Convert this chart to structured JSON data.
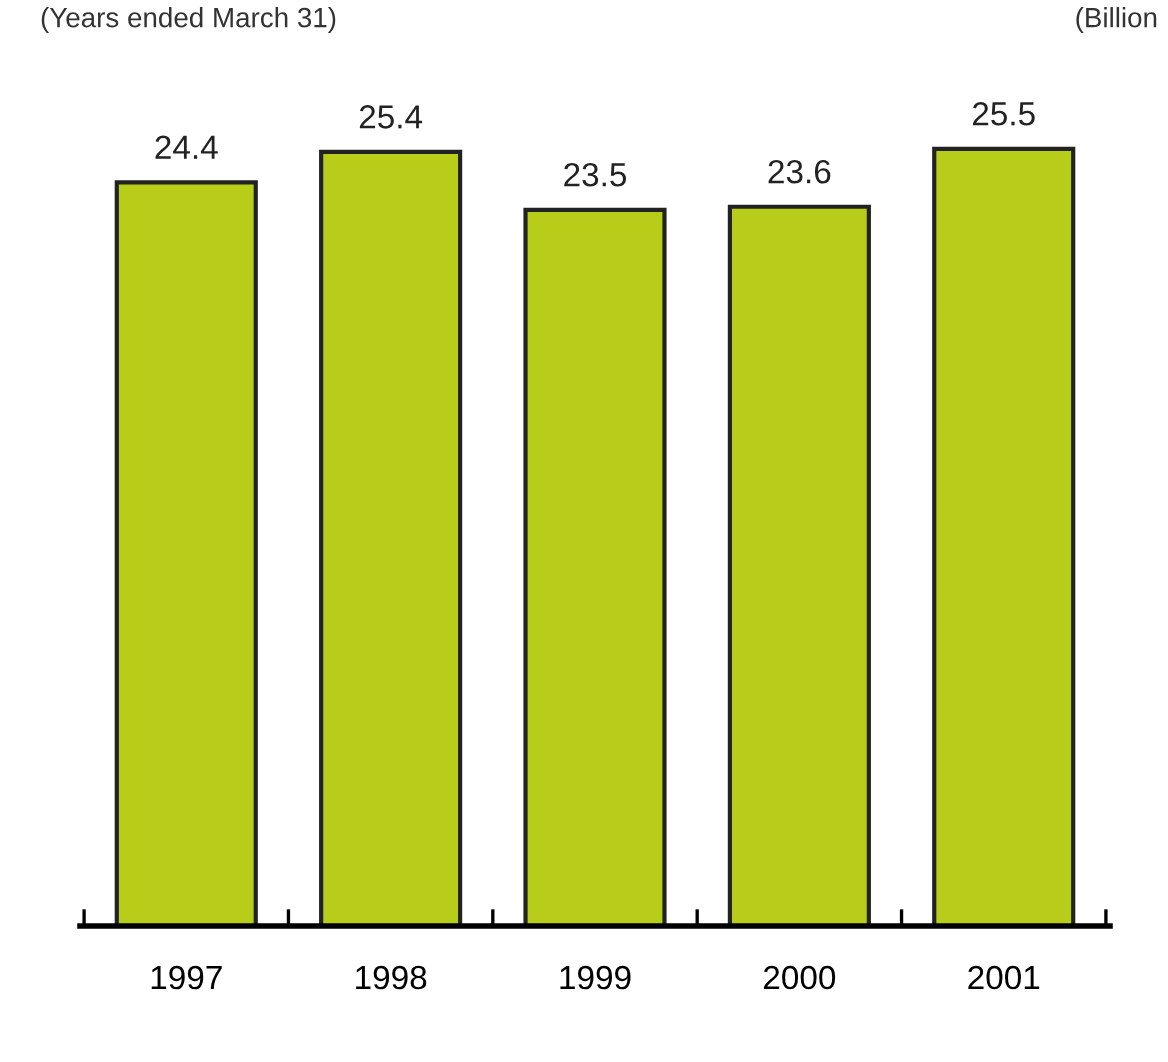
{
  "chart_data": {
    "type": "bar",
    "annotations": [
      "(Years ended March 31)",
      "(Billion"
    ],
    "categories": [
      "1997",
      "1998",
      "1999",
      "2000",
      "2001"
    ],
    "values": [
      24.4,
      25.4,
      23.5,
      23.6,
      25.5
    ],
    "color": "#b8cc1a",
    "data_labels": true,
    "grid": false,
    "legend": false
  }
}
